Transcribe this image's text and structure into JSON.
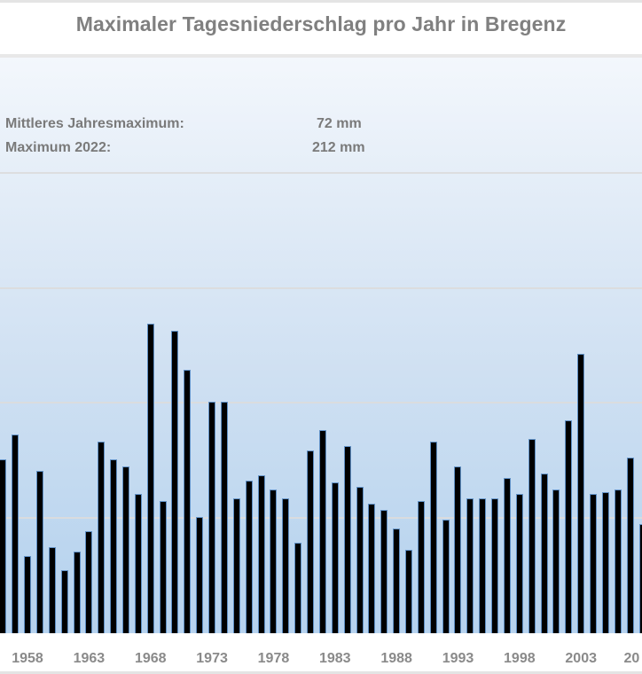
{
  "header": {
    "title": "Maximaler Tagesniederschlag  pro Jahr in Bregenz"
  },
  "annotations": {
    "mean_label": "Mittleres Jahresmaximum:",
    "mean_value": "72 mm",
    "max_label": "Maximum 2022:",
    "max_value": "212 mm"
  },
  "colors": {
    "bar": "#000000",
    "bar_outline": "#5f8fc4",
    "plot_bg_top": "#f3f7fc",
    "plot_bg_bottom": "#b6d2ee",
    "gridline": "#dcdcdc",
    "text": "#808080"
  },
  "chart_data": {
    "type": "bar",
    "title": "Maximaler Tagesniederschlag  pro Jahr in Bregenz",
    "xlabel": "",
    "ylabel": "mm",
    "ylim": [
      0,
      250
    ],
    "grid": true,
    "gridlines": [
      50,
      100,
      150,
      200
    ],
    "legend": null,
    "annotations": [
      "Mittleres Jahresmaximum: 72 mm",
      "Maximum 2022: 212 mm"
    ],
    "tick_labels": [
      "1958",
      "1963",
      "1968",
      "1973",
      "1978",
      "1983",
      "1988",
      "1993",
      "1998",
      "2003",
      "20"
    ],
    "categories": [
      1956,
      1957,
      1958,
      1959,
      1960,
      1961,
      1962,
      1963,
      1964,
      1965,
      1966,
      1967,
      1968,
      1969,
      1970,
      1971,
      1972,
      1973,
      1974,
      1975,
      1976,
      1977,
      1978,
      1979,
      1980,
      1981,
      1982,
      1983,
      1984,
      1985,
      1986,
      1987,
      1988,
      1989,
      1990,
      1991,
      1992,
      1993,
      1994,
      1995,
      1996,
      1997,
      1998,
      1999,
      2000,
      2001,
      2002,
      2003,
      2004,
      2005,
      2006,
      2007,
      2008
    ],
    "values": [
      75,
      86,
      33,
      70,
      37,
      27,
      35,
      44,
      83,
      75,
      72,
      60,
      134,
      57,
      131,
      114,
      50,
      100,
      100,
      58,
      66,
      68,
      62,
      58,
      39,
      79,
      88,
      65,
      81,
      63,
      56,
      53,
      45,
      36,
      57,
      83,
      49,
      72,
      58,
      58,
      58,
      67,
      60,
      84,
      69,
      62,
      92,
      121,
      60,
      61,
      62,
      76,
      47
    ]
  }
}
